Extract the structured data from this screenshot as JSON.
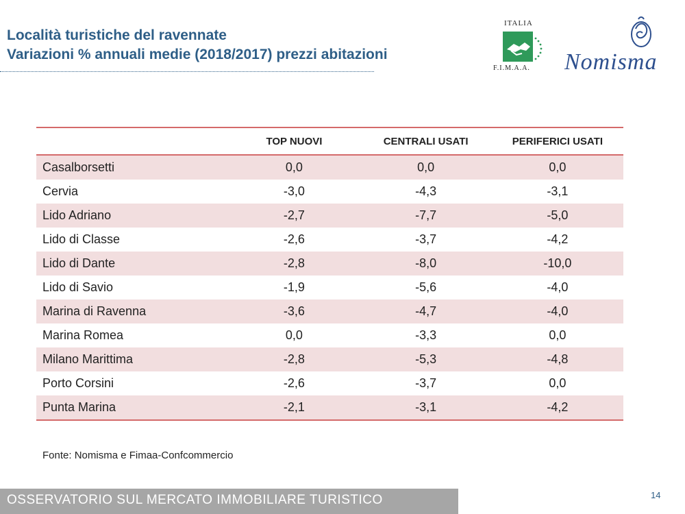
{
  "header": {
    "title_line1": "Località turistiche del ravennate",
    "title_line2": "Variazioni % annuali medie (2018/2017) prezzi abitazioni"
  },
  "logos": {
    "fimaa_top": "ITALIA",
    "fimaa_bottom": "F.I.M.A.A.",
    "nomisma": "Nomisma"
  },
  "table": {
    "columns": [
      "",
      "TOP NUOVI",
      "CENTRALI USATI",
      "PERIFERICI USATI"
    ],
    "rows": [
      {
        "name": "Casalborsetti",
        "top_nuovi": "0,0",
        "centrali_usati": "0,0",
        "periferici_usati": "0,0"
      },
      {
        "name": "Cervia",
        "top_nuovi": "-3,0",
        "centrali_usati": "-4,3",
        "periferici_usati": "-3,1"
      },
      {
        "name": "Lido Adriano",
        "top_nuovi": "-2,7",
        "centrali_usati": "-7,7",
        "periferici_usati": "-5,0"
      },
      {
        "name": "Lido di Classe",
        "top_nuovi": "-2,6",
        "centrali_usati": "-3,7",
        "periferici_usati": "-4,2"
      },
      {
        "name": "Lido di Dante",
        "top_nuovi": "-2,8",
        "centrali_usati": "-8,0",
        "periferici_usati": "-10,0"
      },
      {
        "name": "Lido di Savio",
        "top_nuovi": "-1,9",
        "centrali_usati": "-5,6",
        "periferici_usati": "-4,0"
      },
      {
        "name": "Marina di Ravenna",
        "top_nuovi": "-3,6",
        "centrali_usati": "-4,7",
        "periferici_usati": "-4,0"
      },
      {
        "name": "Marina Romea",
        "top_nuovi": "0,0",
        "centrali_usati": "-3,3",
        "periferici_usati": "0,0"
      },
      {
        "name": "Milano Marittima",
        "top_nuovi": "-2,8",
        "centrali_usati": "-5,3",
        "periferici_usati": "-4,8"
      },
      {
        "name": "Porto Corsini",
        "top_nuovi": "-2,6",
        "centrali_usati": "-3,7",
        "periferici_usati": "0,0"
      },
      {
        "name": "Punta Marina",
        "top_nuovi": "-2,1",
        "centrali_usati": "-3,1",
        "periferici_usati": "-4,2"
      }
    ]
  },
  "source": "Fonte: Nomisma e Fimaa-Confcommercio",
  "footer": {
    "label": "OSSERVATORIO SUL MERCATO IMMOBILIARE TURISTICO",
    "page_number": "14"
  },
  "colors": {
    "title": "#2e5e87",
    "row_shade": "#f2dedf",
    "rule": "#d46a6a",
    "footer_bar": "#a6a6a6",
    "fimaa_green": "#2f9a5a",
    "nomisma_blue": "#2d4f8e"
  }
}
